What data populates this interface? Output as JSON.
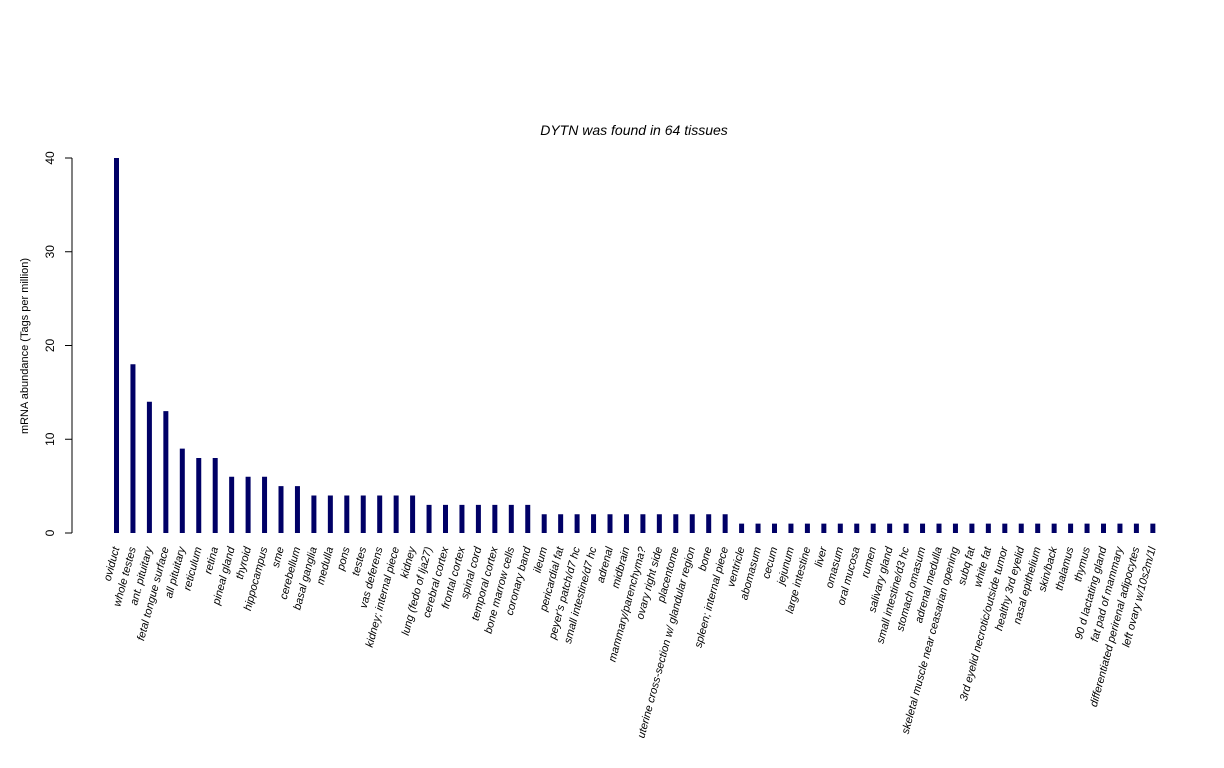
{
  "chart_data": {
    "type": "bar",
    "title": "DYTN  was found in  64  tissues",
    "ylabel": "mRNA abundance (Tags per million)",
    "xlabel": "",
    "ylim": [
      0,
      40
    ],
    "yticks": [
      0,
      10,
      20,
      30,
      40
    ],
    "bar_color": "#000066",
    "categories": [
      "oviduct",
      "whole testes",
      "ant. pituitary",
      "fetal tongue surface",
      "all pituitary",
      "reticulum",
      "retina",
      "pineal gland",
      "thyroid",
      "hippocampus",
      "sme",
      "cerebellum",
      "basal ganglia",
      "medulla",
      "pons",
      "testes",
      "vas deferens",
      "kidney; internal piece",
      "kidney",
      "lung (fedo of lja27)",
      "cerebral cortex",
      "frontal cortex",
      "spinal cord",
      "temporal cortex",
      "bone marrow cells",
      "coronary band",
      "ileum",
      "pericardial fat",
      "peyer's patch/d7 hc",
      "small intestine/d7 hc",
      "adrenal",
      "midbrain",
      "mammary/parenchyma?",
      "ovary right side",
      "placentome",
      "uterine cross-section w/ glandular region",
      "bone",
      "spleen; internal piece",
      "ventricle",
      "abomasum",
      "cecum",
      "jejunum",
      "large intestine",
      "liver",
      "omasum",
      "oral mucosa",
      "rumen",
      "salivary gland",
      "small intestine/d3 hc",
      "stomach omasum",
      "adrenal medulla",
      "skeletal muscle near ceasarian opening",
      "subq fat",
      "white fat",
      "3rd eyelid necrotic/outside tumor",
      "healthy 3rd eyelid",
      "nasal epithelium",
      "skin/back",
      "thalamus",
      "thymus",
      "90 d lactating gland",
      "fat pad of mammary",
      "differentiated perirenal adipocytes",
      "left ovary w/10s2m/1l"
    ],
    "values": [
      40,
      18,
      14,
      13,
      9,
      8,
      8,
      6,
      6,
      6,
      5,
      5,
      4,
      4,
      4,
      4,
      4,
      4,
      4,
      3,
      3,
      3,
      3,
      3,
      3,
      3,
      2,
      2,
      2,
      2,
      2,
      2,
      2,
      2,
      2,
      2,
      2,
      2,
      1,
      1,
      1,
      1,
      1,
      1,
      1,
      1,
      1,
      1,
      1,
      1,
      1,
      1,
      1,
      1,
      1,
      1,
      1,
      1,
      1,
      1,
      1,
      1,
      1,
      1
    ]
  }
}
